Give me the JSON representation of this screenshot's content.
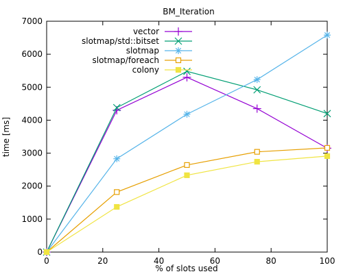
{
  "chart_data": {
    "type": "line",
    "title": "BM_Iteration",
    "xlabel": "% of slots used",
    "ylabel": "time [ms]",
    "xlim": [
      0,
      100
    ],
    "ylim": [
      0,
      7000
    ],
    "xticks": [
      0,
      20,
      40,
      60,
      80,
      100
    ],
    "yticks": [
      0,
      1000,
      2000,
      3000,
      4000,
      5000,
      6000,
      7000
    ],
    "xtick_labels": [
      "0",
      "20",
      "40",
      "60",
      "80",
      "100"
    ],
    "ytick_labels": [
      "0",
      "1000",
      "2000",
      "3000",
      "4000",
      "5000",
      "6000",
      "7000"
    ],
    "grid": false,
    "legend_position": "top-left",
    "x": [
      0,
      25,
      50,
      75,
      100
    ],
    "series": [
      {
        "name": "vector",
        "color": "#9400d3",
        "marker": "plus",
        "values": [
          0,
          4300,
          5300,
          4350,
          3150
        ]
      },
      {
        "name": "slotmap/std::bitset",
        "color": "#009e73",
        "marker": "cross",
        "values": [
          0,
          4380,
          5480,
          4920,
          4200
        ]
      },
      {
        "name": "slotmap",
        "color": "#56b4e9",
        "marker": "star",
        "values": [
          0,
          2830,
          4180,
          5230,
          6580
        ]
      },
      {
        "name": "slotmap/foreach",
        "color": "#e69f00",
        "marker": "square-open",
        "values": [
          0,
          1820,
          2640,
          3040,
          3160
        ]
      },
      {
        "name": "colony",
        "color": "#f0e442",
        "marker": "square-filled",
        "values": [
          0,
          1370,
          2330,
          2740,
          2910
        ]
      }
    ]
  }
}
